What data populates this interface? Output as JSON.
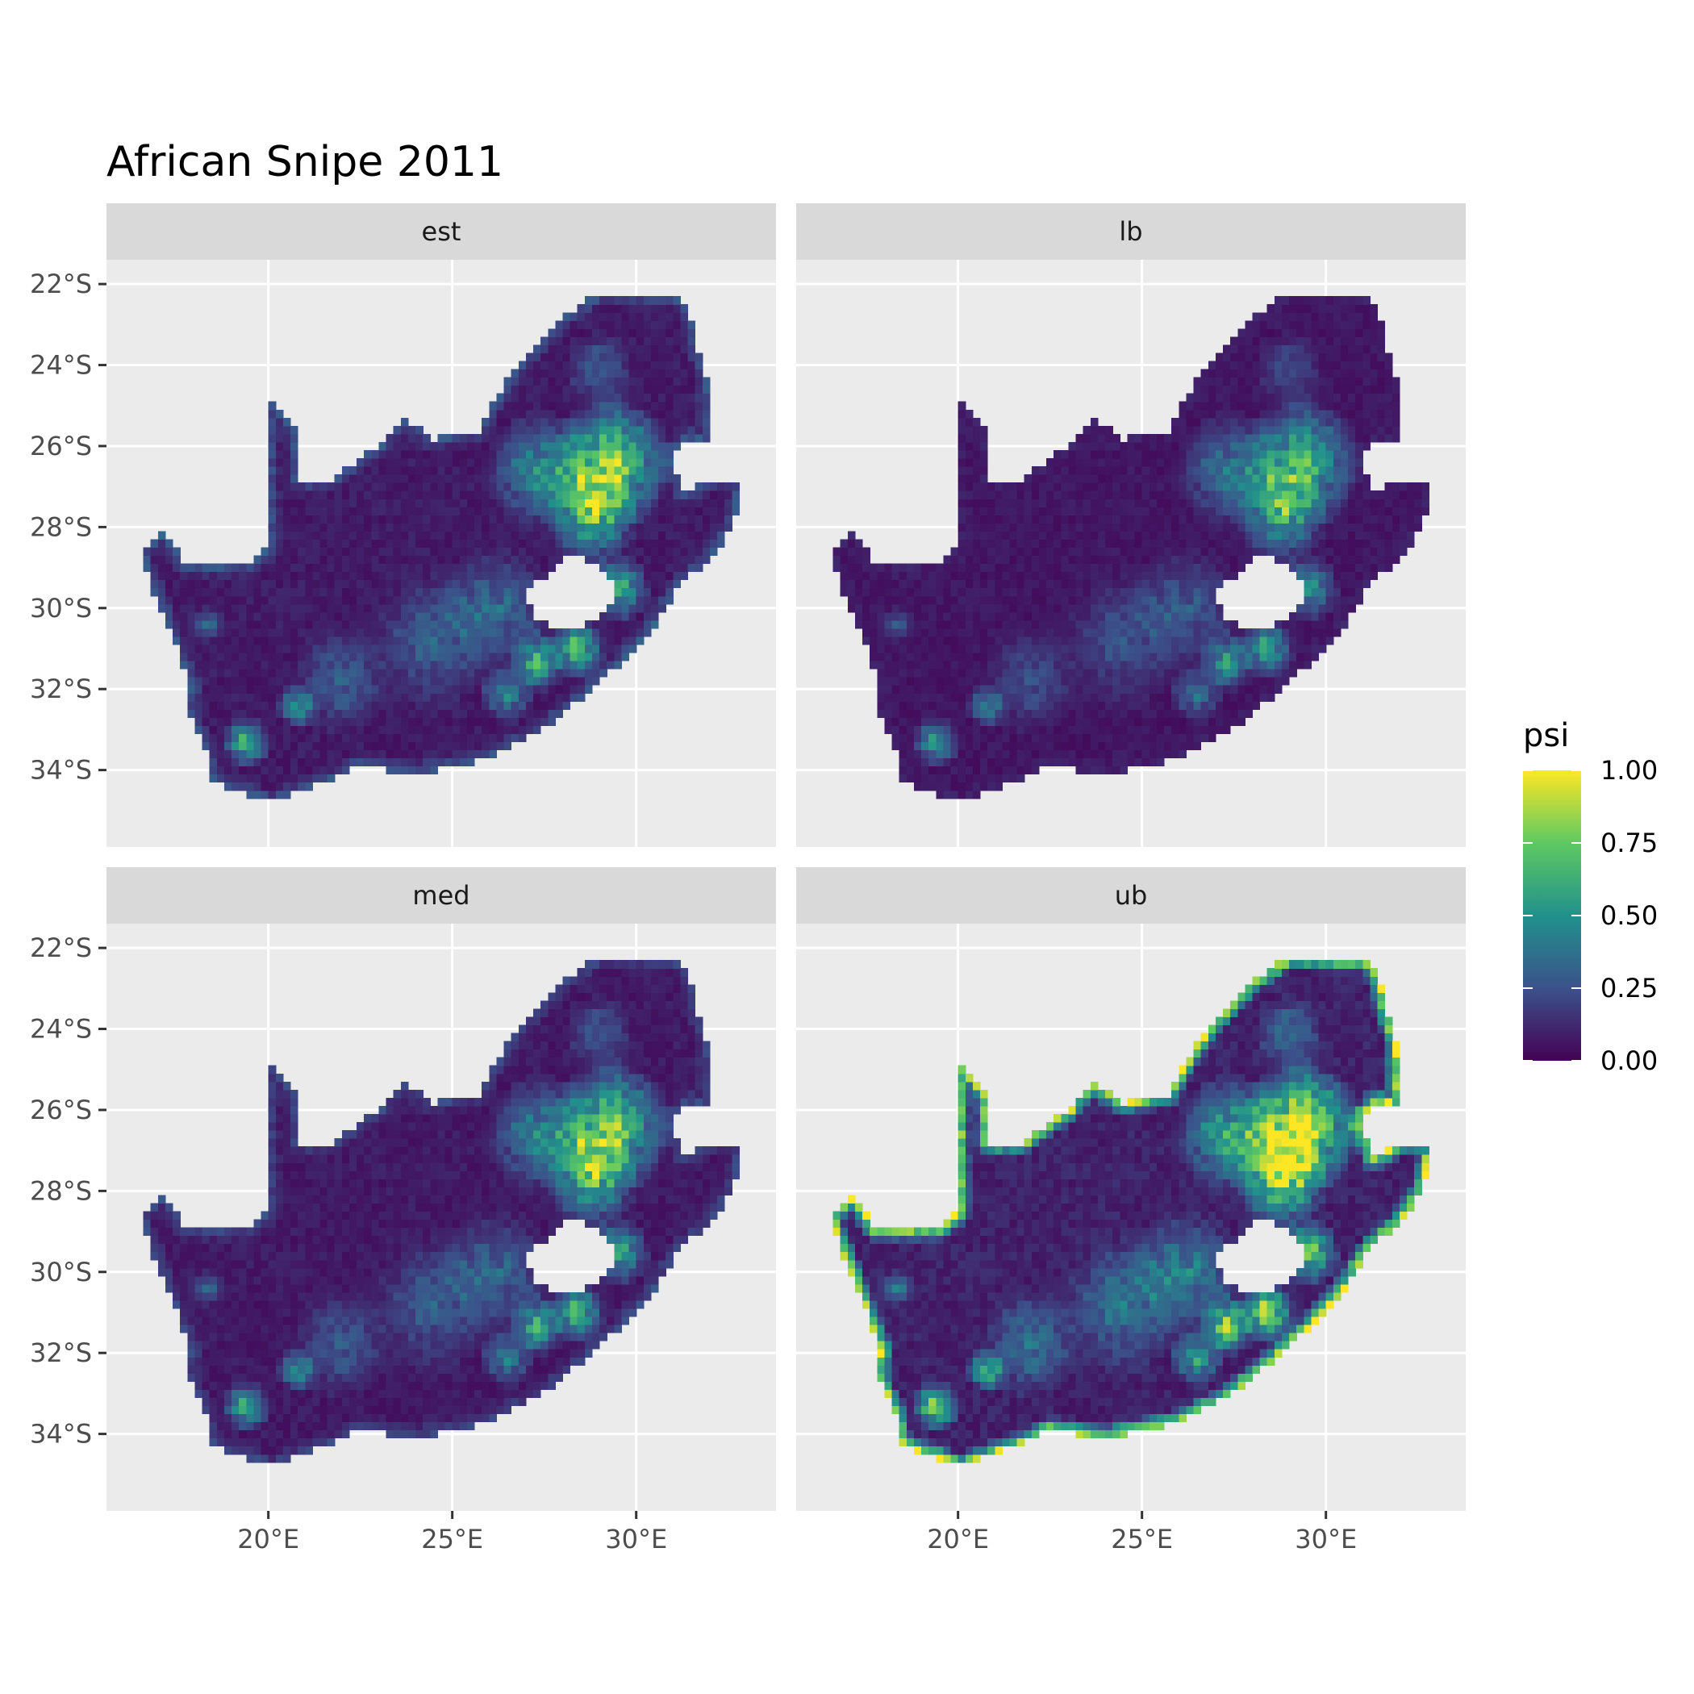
{
  "chart_data": {
    "type": "heatmap",
    "title": "African Snipe 2011",
    "facets": [
      "est",
      "lb",
      "med",
      "ub"
    ],
    "x_ticks": [
      "20°E",
      "25°E",
      "30°E"
    ],
    "x_tick_values": [
      20,
      25,
      30
    ],
    "y_ticks": [
      "22°S",
      "24°S",
      "26°S",
      "28°S",
      "30°S",
      "32°S",
      "34°S"
    ],
    "y_tick_values": [
      -22,
      -24,
      -26,
      -28,
      -30,
      -32,
      -34
    ],
    "xlim": [
      15.6,
      33.8
    ],
    "ylim": [
      -35.9,
      -21.4
    ],
    "legend": {
      "title": "psi",
      "ticks": [
        "1.00",
        "0.75",
        "0.50",
        "0.25",
        "0.00"
      ],
      "tick_values": [
        1.0,
        0.75,
        0.5,
        0.25,
        0.0
      ],
      "position": "right"
    },
    "colormap": [
      "#440154",
      "#3b528b",
      "#21918c",
      "#5ec962",
      "#fde725"
    ],
    "panel_background": "#ebebeb",
    "strip_background": "#d9d9d9",
    "grid": true,
    "country_outline": [
      [
        16.5,
        -28.6
      ],
      [
        17.2,
        -28.1
      ],
      [
        17.7,
        -28.9
      ],
      [
        19.5,
        -28.9
      ],
      [
        20.0,
        -28.5
      ],
      [
        20.0,
        -24.8
      ],
      [
        20.8,
        -25.6
      ],
      [
        20.8,
        -26.8
      ],
      [
        21.7,
        -26.8
      ],
      [
        23.0,
        -26.0
      ],
      [
        23.6,
        -25.3
      ],
      [
        24.5,
        -25.8
      ],
      [
        25.7,
        -25.6
      ],
      [
        26.3,
        -24.6
      ],
      [
        27.0,
        -23.8
      ],
      [
        28.0,
        -22.8
      ],
      [
        29.0,
        -22.2
      ],
      [
        31.2,
        -22.3
      ],
      [
        31.5,
        -23.0
      ],
      [
        31.9,
        -24.3
      ],
      [
        32.0,
        -25.9
      ],
      [
        31.3,
        -25.8
      ],
      [
        30.9,
        -26.3
      ],
      [
        31.3,
        -27.2
      ],
      [
        32.0,
        -26.8
      ],
      [
        32.9,
        -26.8
      ],
      [
        32.6,
        -28.0
      ],
      [
        32.0,
        -28.8
      ],
      [
        31.2,
        -29.4
      ],
      [
        30.5,
        -30.4
      ],
      [
        29.5,
        -31.4
      ],
      [
        28.4,
        -32.3
      ],
      [
        27.3,
        -33.1
      ],
      [
        26.0,
        -33.7
      ],
      [
        25.0,
        -33.9
      ],
      [
        24.0,
        -34.1
      ],
      [
        22.5,
        -33.9
      ],
      [
        21.6,
        -34.3
      ],
      [
        20.0,
        -34.8
      ],
      [
        19.5,
        -34.6
      ],
      [
        18.8,
        -34.4
      ],
      [
        18.4,
        -34.2
      ],
      [
        18.3,
        -33.5
      ],
      [
        17.8,
        -32.6
      ],
      [
        17.9,
        -31.9
      ],
      [
        17.4,
        -30.7
      ],
      [
        16.9,
        -29.6
      ]
    ],
    "lesotho_hole": [
      [
        27.0,
        -29.6
      ],
      [
        27.5,
        -29.2
      ],
      [
        28.1,
        -28.7
      ],
      [
        29.0,
        -28.9
      ],
      [
        29.4,
        -29.5
      ],
      [
        29.2,
        -30.1
      ],
      [
        28.6,
        -30.4
      ],
      [
        28.0,
        -30.6
      ],
      [
        27.4,
        -30.3
      ],
      [
        27.0,
        -29.9
      ]
    ],
    "hotspots": [
      {
        "lon": 29.3,
        "lat": -26.4,
        "radius": 1.7,
        "psi": 0.9
      },
      {
        "lon": 28.8,
        "lat": -27.6,
        "radius": 1.4,
        "psi": 0.75
      },
      {
        "lon": 27.4,
        "lat": -26.6,
        "radius": 1.5,
        "psi": 0.55
      },
      {
        "lon": 29.5,
        "lat": -29.5,
        "radius": 0.9,
        "psi": 0.7
      },
      {
        "lon": 28.4,
        "lat": -31.0,
        "radius": 0.8,
        "psi": 0.8
      },
      {
        "lon": 27.3,
        "lat": -31.3,
        "radius": 0.8,
        "psi": 0.7
      },
      {
        "lon": 29.0,
        "lat": -24.1,
        "radius": 1.0,
        "psi": 0.3
      },
      {
        "lon": 26.2,
        "lat": -30.0,
        "radius": 1.6,
        "psi": 0.35
      },
      {
        "lon": 24.5,
        "lat": -30.8,
        "radius": 1.8,
        "psi": 0.3
      },
      {
        "lon": 22.0,
        "lat": -31.8,
        "radius": 1.4,
        "psi": 0.28
      },
      {
        "lon": 19.4,
        "lat": -33.3,
        "radius": 0.7,
        "psi": 0.7
      },
      {
        "lon": 20.8,
        "lat": -32.4,
        "radius": 0.6,
        "psi": 0.55
      },
      {
        "lon": 26.5,
        "lat": -32.1,
        "radius": 0.8,
        "psi": 0.45
      },
      {
        "lon": 18.3,
        "lat": -30.4,
        "radius": 0.5,
        "psi": 0.3
      }
    ],
    "panel_scale": {
      "est": 1.0,
      "lb": 0.82,
      "med": 0.95,
      "ub": 1.25
    },
    "panel_coast_boost": {
      "est": 0.25,
      "lb": 0.05,
      "med": 0.2,
      "ub": 0.85
    }
  }
}
